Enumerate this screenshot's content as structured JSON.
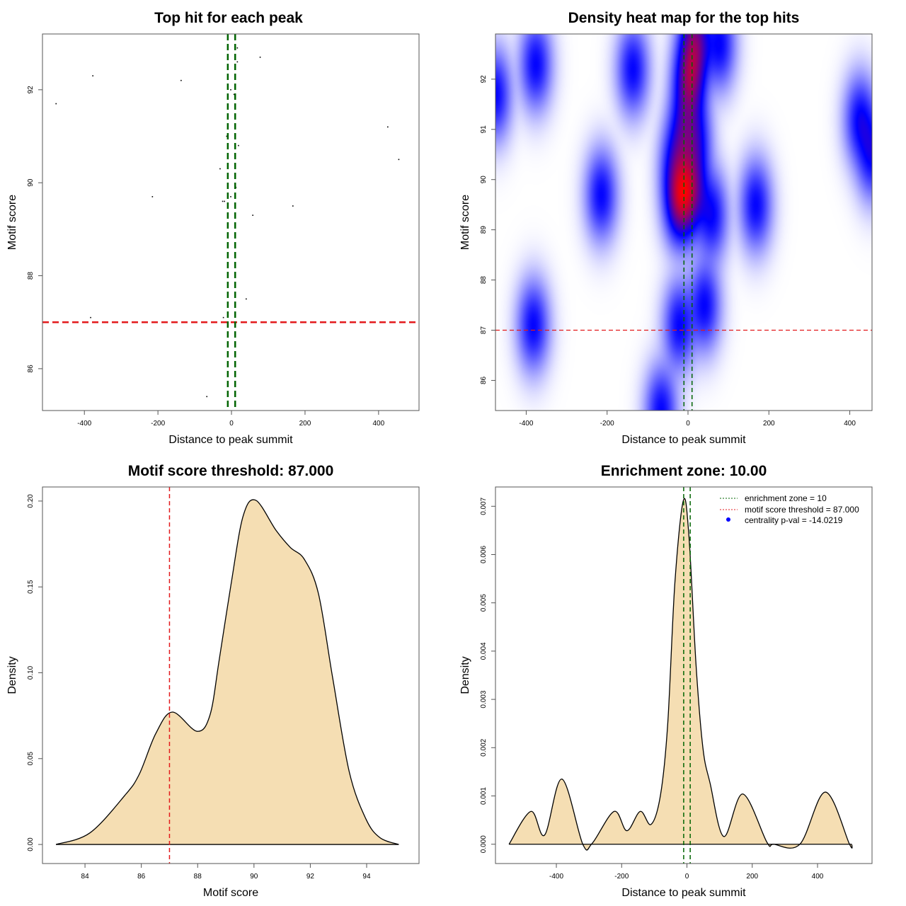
{
  "chart_data": [
    {
      "type": "scatter",
      "title": "Top hit for each peak",
      "xlabel": "Distance to peak summit",
      "ylabel": "Motif score",
      "xlim": [
        -514,
        510
      ],
      "ylim": [
        85.1,
        93.2
      ],
      "xticks": [
        -400,
        -200,
        0,
        200,
        400
      ],
      "xtick_labels": [
        "-400",
        "-200",
        "0",
        "200",
        "400"
      ],
      "yticks": [
        86,
        88,
        90,
        92
      ],
      "ytick_labels": [
        "86",
        "88",
        "90",
        "92"
      ],
      "points": [
        [
          -377,
          92.3
        ],
        [
          -137,
          92.2
        ],
        [
          -477,
          91.7
        ],
        [
          16,
          92.9
        ],
        [
          78,
          92.7
        ],
        [
          16,
          92.6
        ],
        [
          -2,
          92.0
        ],
        [
          7,
          91.9
        ],
        [
          425,
          91.2
        ],
        [
          -13,
          91.0
        ],
        [
          19,
          90.8
        ],
        [
          455,
          90.5
        ],
        [
          -31,
          90.3
        ],
        [
          12,
          89.9
        ],
        [
          -215,
          89.7
        ],
        [
          -2,
          89.7
        ],
        [
          -24,
          89.6
        ],
        [
          -19,
          89.6
        ],
        [
          167,
          89.5
        ],
        [
          58,
          89.3
        ],
        [
          40,
          87.5
        ],
        [
          -383,
          87.1
        ],
        [
          -22,
          87.1
        ],
        [
          -67,
          85.4
        ]
      ],
      "vlines": [
        -10,
        10
      ],
      "hlines": [
        87
      ],
      "vline_color": "#006400",
      "hline_color": "#e31a1c",
      "grid": false
    },
    {
      "type": "heatmap",
      "title": "Density heat map for the top hits",
      "xlabel": "Distance to peak summit",
      "ylabel": "Motif score",
      "xlim": [
        -476,
        455
      ],
      "ylim": [
        85.4,
        92.9
      ],
      "xticks": [
        -400,
        -200,
        0,
        200,
        400
      ],
      "xtick_labels": [
        "-400",
        "-200",
        "0",
        "200",
        "400"
      ],
      "yticks": [
        86,
        87,
        88,
        89,
        90,
        91,
        92
      ],
      "ytick_labels": [
        "86",
        "87",
        "88",
        "89",
        "90",
        "91",
        "92"
      ],
      "colors": [
        "#ffffff",
        "#0000ff",
        "#ff0000"
      ],
      "vlines": [
        -10,
        10
      ],
      "hlines": [
        87
      ],
      "vline_color": "#006400",
      "hline_color": "#e31a1c"
    },
    {
      "type": "area",
      "title": "Motif score threshold: 87.000",
      "xlabel": "Motif score",
      "ylabel": "Density",
      "xlim": [
        82.49,
        95.86
      ],
      "ylim": [
        -0.0111,
        0.2082
      ],
      "xticks": [
        84,
        86,
        88,
        90,
        92,
        94
      ],
      "xtick_labels": [
        "84",
        "86",
        "88",
        "90",
        "92",
        "94"
      ],
      "yticks": [
        0,
        0.05,
        0.1,
        0.15,
        0.2
      ],
      "ytick_labels": [
        "0.00",
        "0.05",
        "0.10",
        "0.15",
        "0.20"
      ],
      "x": [
        82.97,
        84.17,
        85.42,
        85.93,
        86.51,
        87.1,
        87.98,
        88.44,
        88.77,
        89.19,
        89.61,
        90.06,
        90.78,
        91.29,
        91.79,
        92.29,
        92.79,
        93.38,
        93.97,
        94.47,
        95.14
      ],
      "y": [
        0,
        0.0067,
        0.0287,
        0.041,
        0.0645,
        0.0771,
        0.0659,
        0.0755,
        0.108,
        0.152,
        0.191,
        0.2005,
        0.183,
        0.173,
        0.166,
        0.146,
        0.0974,
        0.0425,
        0.015,
        0.004,
        0
      ],
      "fill": "#f5deb3",
      "vlines": [
        87
      ],
      "vline_color": "#e31a1c"
    },
    {
      "type": "area",
      "title": "Enrichment zone: 10.00",
      "xlabel": "Distance to peak summit",
      "ylabel": "Density",
      "xlim": [
        -586.5,
        566.9
      ],
      "ylim": [
        -0.0004,
        0.0074
      ],
      "xticks": [
        -400,
        -200,
        0,
        200,
        400
      ],
      "xtick_labels": [
        "-400",
        "-200",
        "0",
        "200",
        "400"
      ],
      "yticks": [
        0,
        0.001,
        0.002,
        0.003,
        0.004,
        0.005,
        0.006,
        0.007
      ],
      "ytick_labels": [
        "0.000",
        "0.001",
        "0.002",
        "0.003",
        "0.004",
        "0.005",
        "0.006",
        "0.007"
      ],
      "x": [
        -545,
        -478,
        -436,
        -383,
        -319,
        -290,
        -223,
        -184,
        -143,
        -110,
        -81,
        -59,
        -37,
        -11,
        6,
        28,
        49,
        71,
        113,
        171,
        245,
        266,
        346,
        424,
        498,
        505
      ],
      "y": [
        0,
        0.00068,
        0.00019,
        0.00135,
        0,
        2e-05,
        0.00068,
        0.00028,
        0.00068,
        0.00041,
        0.00102,
        0.00248,
        0.00541,
        0.00712,
        0.00639,
        0.0037,
        0.00199,
        0.00126,
        0.00016,
        0.00104,
        4e-05,
        0,
        0,
        0.00108,
        0,
        0
      ],
      "fill": "#f5deb3",
      "vlines": [
        -10,
        10
      ],
      "vline_color": "#006400",
      "legend_position": "top-right",
      "legend": [
        {
          "label": "enrichment zone = 10",
          "color": "#006400",
          "symbol": "dotted-line"
        },
        {
          "label": "motif score threshold = 87.000",
          "color": "#e31a1c",
          "symbol": "dotted-line"
        },
        {
          "label": "centrality p-val = -14.0219",
          "color": "#0000ff",
          "symbol": "point"
        }
      ]
    }
  ]
}
